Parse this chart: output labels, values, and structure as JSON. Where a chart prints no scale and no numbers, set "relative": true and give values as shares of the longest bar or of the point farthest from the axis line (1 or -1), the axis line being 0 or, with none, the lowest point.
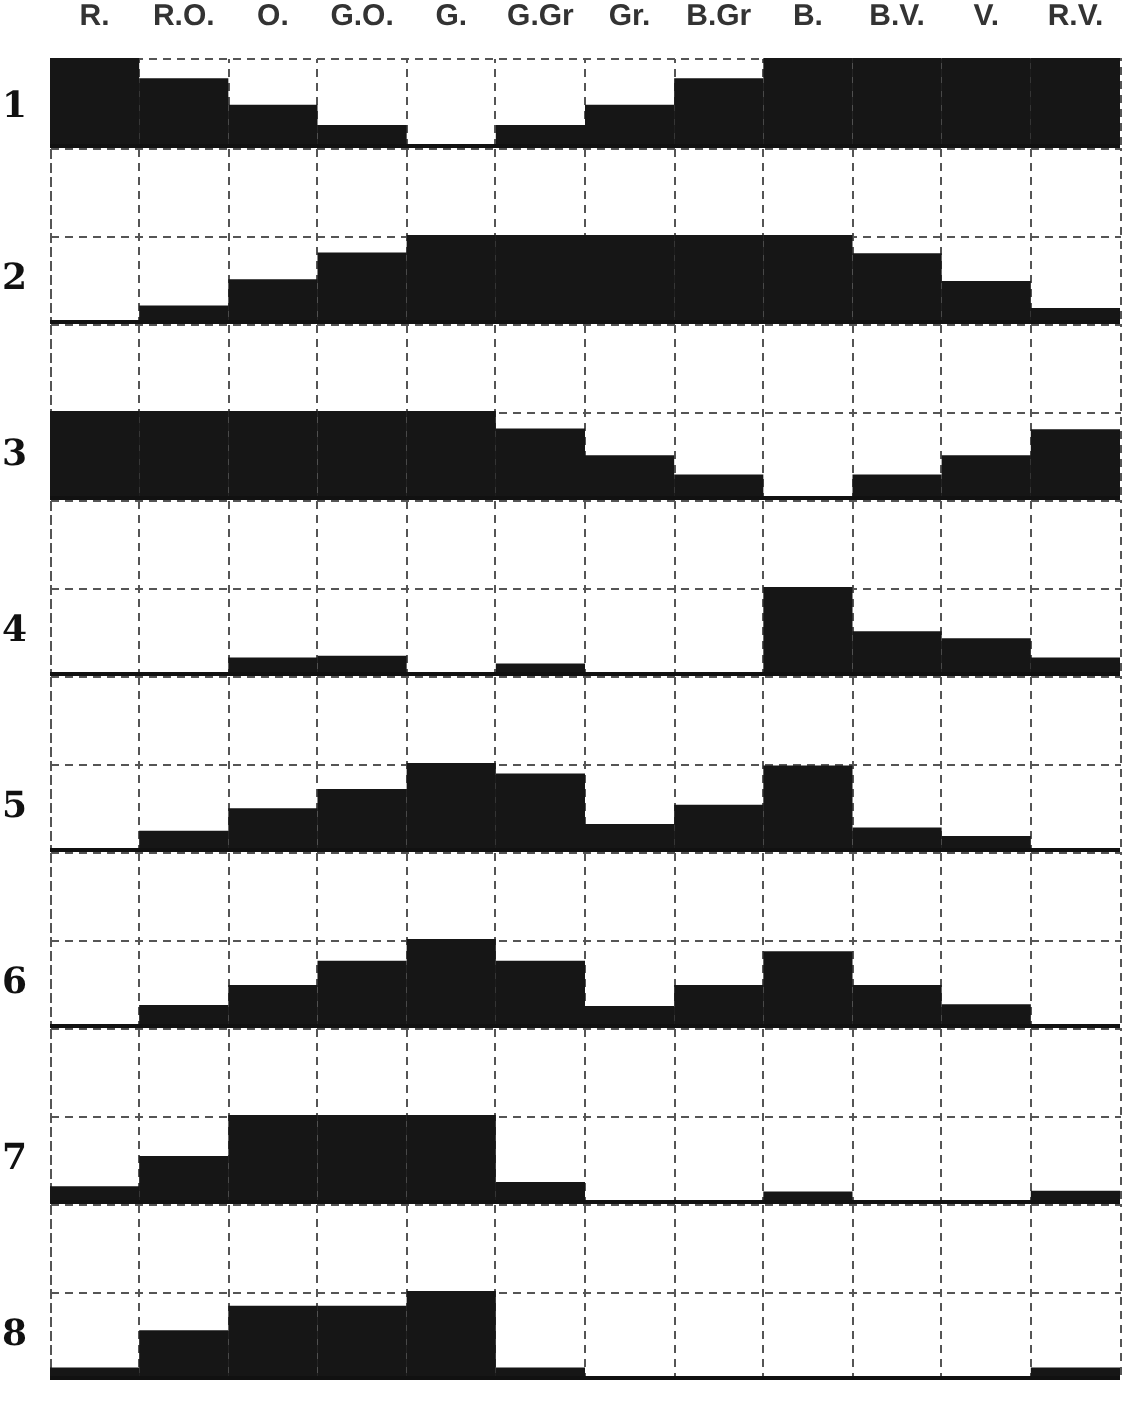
{
  "chart_data": [
    {
      "type": "bar",
      "ylabel": "1",
      "categories": [
        "R.",
        "R.O.",
        "O.",
        "G.O.",
        "G.",
        "G.Gr",
        "Gr.",
        "B.Gr",
        "B.",
        "B.V.",
        "V.",
        "R.V."
      ],
      "relative": true,
      "grid": true,
      "tick_labels": "x",
      "color": "#161616",
      "values": [
        1,
        0.77,
        0.47,
        0.24,
        0,
        0.24,
        0.47,
        0.77,
        1,
        1,
        1,
        1
      ]
    },
    {
      "type": "bar",
      "ylabel": "2",
      "categories": [
        null,
        null,
        null,
        null,
        null,
        null,
        null,
        null,
        null,
        null,
        null,
        null
      ],
      "relative": true,
      "grid": true,
      "tick_labels": false,
      "color": "#161616",
      "values": [
        0,
        0.19,
        0.49,
        0.8,
        1,
        1,
        1,
        1,
        1,
        0.79,
        0.47,
        0.16
      ]
    },
    {
      "type": "bar",
      "ylabel": "3",
      "categories": [
        null,
        null,
        null,
        null,
        null,
        null,
        null,
        null,
        null,
        null,
        null,
        null
      ],
      "relative": true,
      "grid": true,
      "tick_labels": false,
      "color": "#161616",
      "values": [
        1,
        1,
        1,
        1,
        1,
        0.8,
        0.49,
        0.27,
        0,
        0.27,
        0.49,
        0.79
      ]
    },
    {
      "type": "bar",
      "ylabel": "4",
      "categories": [
        null,
        null,
        null,
        null,
        null,
        null,
        null,
        null,
        null,
        null,
        null,
        null
      ],
      "relative": true,
      "grid": true,
      "tick_labels": false,
      "color": "#161616",
      "values": [
        0,
        0,
        0.19,
        0.21,
        0,
        0.12,
        0,
        0,
        1,
        0.49,
        0.41,
        0.19
      ]
    },
    {
      "type": "bar",
      "ylabel": "5",
      "categories": [
        null,
        null,
        null,
        null,
        null,
        null,
        null,
        null,
        null,
        null,
        null,
        null
      ],
      "relative": true,
      "grid": true,
      "tick_labels": false,
      "color": "#161616",
      "values": [
        0,
        0.22,
        0.48,
        0.7,
        1,
        0.88,
        0.3,
        0.52,
        0.97,
        0.26,
        0.16,
        0
      ]
    },
    {
      "type": "bar",
      "ylabel": "6",
      "categories": [
        null,
        null,
        null,
        null,
        null,
        null,
        null,
        null,
        null,
        null,
        null,
        null
      ],
      "relative": true,
      "grid": true,
      "tick_labels": false,
      "color": "#161616",
      "values": [
        0,
        0.24,
        0.47,
        0.75,
        1,
        0.75,
        0.23,
        0.47,
        0.86,
        0.47,
        0.25,
        0
      ]
    },
    {
      "type": "bar",
      "ylabel": "7",
      "categories": [
        null,
        null,
        null,
        null,
        null,
        null,
        null,
        null,
        null,
        null,
        null,
        null
      ],
      "relative": true,
      "grid": true,
      "tick_labels": false,
      "color": "#161616",
      "values": [
        0.18,
        0.53,
        1,
        1,
        1,
        0.23,
        0,
        0,
        0.12,
        0,
        0,
        0.13
      ]
    },
    {
      "type": "bar",
      "ylabel": "8",
      "categories": [
        null,
        null,
        null,
        null,
        null,
        null,
        null,
        null,
        null,
        null,
        null,
        null
      ],
      "relative": true,
      "grid": true,
      "tick_labels": false,
      "color": "#161616",
      "values": [
        0.12,
        0.55,
        0.83,
        0.83,
        1,
        0.12,
        0,
        0,
        0,
        0,
        0,
        0.12
      ]
    }
  ]
}
